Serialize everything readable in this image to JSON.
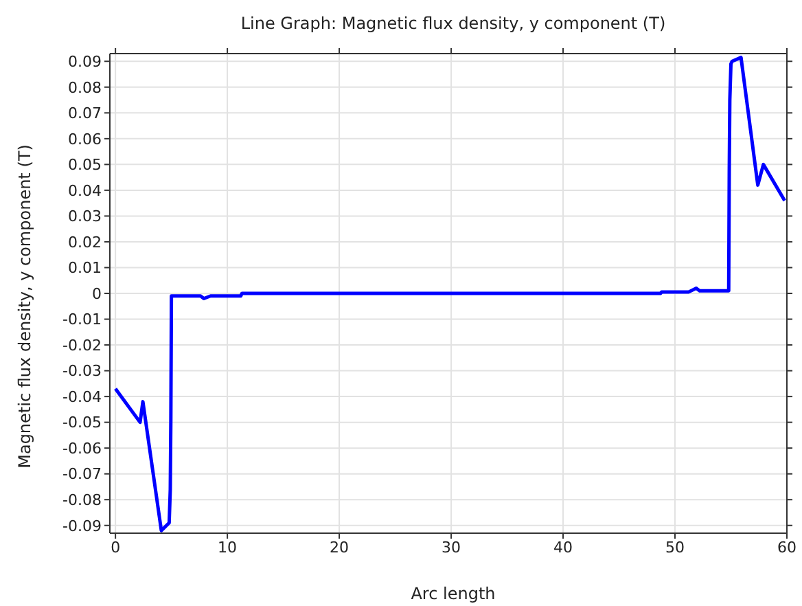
{
  "chart_data": {
    "type": "line",
    "title": "Line Graph: Magnetic flux density, y component (T)",
    "xlabel": "Arc length",
    "ylabel": "Magnetic flux density, y component (T)",
    "series": [
      {
        "color": "#0000ff",
        "x": [
          0,
          2.2,
          2.45,
          4.1,
          4.8,
          4.9,
          4.95,
          5.0,
          7.6,
          7.9,
          8.5,
          11.2,
          11.3,
          48.7,
          48.8,
          51.2,
          51.9,
          52.2,
          54.8,
          54.85,
          54.9,
          55.0,
          55.1,
          55.9,
          57.4,
          57.9,
          59.8
        ],
        "values": [
          -0.037,
          -0.05,
          -0.042,
          -0.092,
          -0.089,
          -0.076,
          -0.049,
          -0.001,
          -0.001,
          -0.002,
          -0.001,
          -0.001,
          0,
          0,
          0.0005,
          0.0005,
          0.002,
          0.001,
          0.001,
          0.048,
          0.075,
          0.089,
          0.09,
          0.0915,
          0.042,
          0.05,
          0.036
        ]
      }
    ],
    "xlim": [
      -0.5,
      60
    ],
    "xticks": [
      0,
      10,
      20,
      30,
      40,
      50,
      60
    ],
    "ylim": [
      -0.093,
      0.093
    ],
    "yticks": [
      -0.09,
      -0.08,
      -0.07,
      -0.06,
      -0.05,
      -0.04,
      -0.03,
      -0.02,
      -0.01,
      0,
      0.01,
      0.02,
      0.03,
      0.04,
      0.05,
      0.06,
      0.07,
      0.08,
      0.09
    ],
    "grid": true,
    "marker": "none",
    "line_style": "solid"
  }
}
